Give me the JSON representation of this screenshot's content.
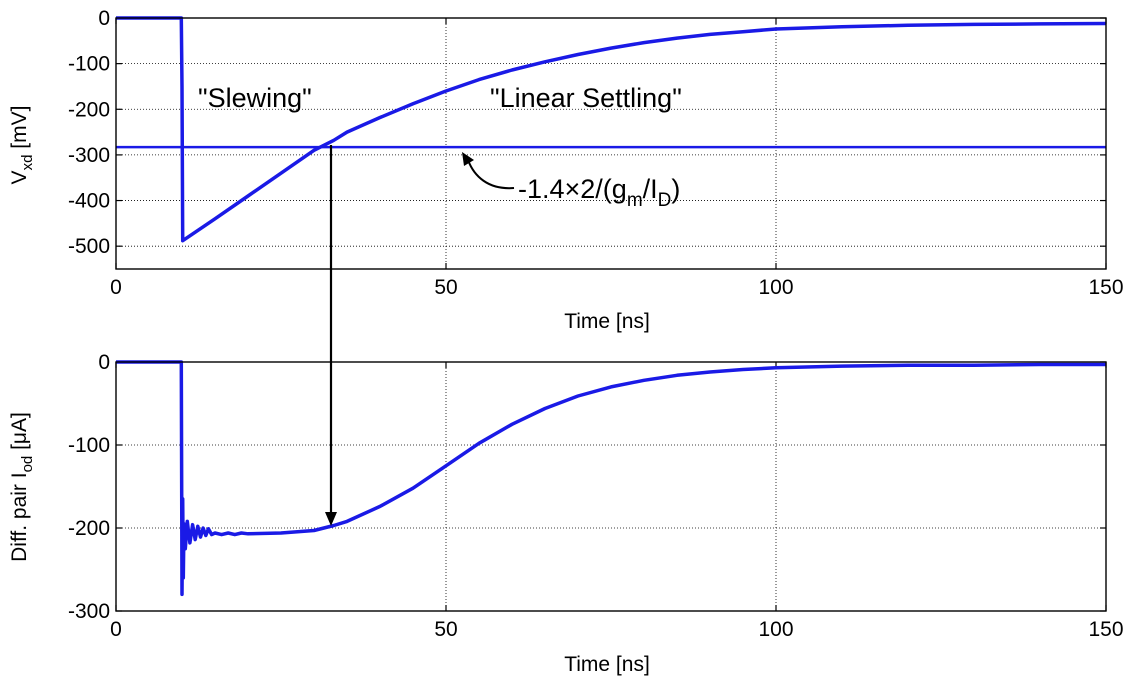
{
  "chart_data": [
    {
      "type": "line",
      "title": "",
      "xlabel": "Time  [ns]",
      "ylabel_main": "V",
      "ylabel_sub": "xd",
      "ylabel_unit": " [mV]",
      "xlim": [
        0,
        150
      ],
      "ylim": [
        -550,
        0
      ],
      "xticks": [
        0,
        50,
        100,
        150
      ],
      "yticks": [
        0,
        -100,
        -200,
        -300,
        -400,
        -500
      ],
      "grid": true,
      "series": [
        {
          "color": "#1a1ae6",
          "x": [
            0,
            9.9,
            10,
            10.1,
            15,
            20,
            25,
            30,
            33,
            35,
            40,
            45,
            50,
            55,
            60,
            65,
            70,
            75,
            80,
            85,
            90,
            95,
            100,
            110,
            120,
            130,
            140,
            150
          ],
          "y": [
            0,
            0,
            -150,
            -488,
            -440,
            -390,
            -340,
            -290,
            -268,
            -250,
            -218,
            -188,
            -160,
            -135,
            -114,
            -96,
            -80,
            -66,
            -54,
            -44,
            -36,
            -30,
            -24,
            -19,
            -16,
            -14,
            -13,
            -12
          ]
        }
      ],
      "hline": {
        "y": -283,
        "color": "#1a1ae6"
      },
      "annotations": {
        "slewing": "\"Slewing\"",
        "linear": "\"Linear Settling\"",
        "ref_main": "-1.4×2/(g",
        "ref_sub1": "m",
        "ref_mid": "/I",
        "ref_sub2": "D",
        "ref_end": ")"
      }
    },
    {
      "type": "line",
      "title": "",
      "xlabel": "Time  [ns]",
      "ylabel_main": "Diff. pair I",
      "ylabel_sub": "od",
      "ylabel_unit": " [μA]",
      "xlim": [
        0,
        150
      ],
      "ylim": [
        -300,
        0
      ],
      "xticks": [
        0,
        50,
        100,
        150
      ],
      "yticks": [
        0,
        -100,
        -200,
        -300
      ],
      "grid": true,
      "series": [
        {
          "color": "#1a1ae6",
          "x": [
            0,
            9.9,
            10,
            10.1,
            10.2,
            10.3,
            10.5,
            10.8,
            11.2,
            11.6,
            12.0,
            12.4,
            12.8,
            13.2,
            13.6,
            14.0,
            14.5,
            15,
            16,
            17,
            18,
            19,
            20,
            25,
            30,
            33,
            35,
            40,
            45,
            50,
            55,
            60,
            65,
            70,
            75,
            80,
            85,
            90,
            95,
            100,
            110,
            120,
            130,
            140,
            150
          ],
          "y": [
            0,
            0,
            -280,
            -165,
            -260,
            -195,
            -225,
            -192,
            -218,
            -196,
            -214,
            -198,
            -211,
            -200,
            -209,
            -201,
            -208,
            -206,
            -208,
            -206,
            -208,
            -206,
            -207,
            -206,
            -203,
            -197,
            -192,
            -174,
            -152,
            -125,
            -98,
            -75,
            -56,
            -41,
            -30,
            -22,
            -16,
            -12,
            -9,
            -7,
            -5,
            -4,
            -4,
            -3,
            -3
          ]
        }
      ]
    }
  ]
}
